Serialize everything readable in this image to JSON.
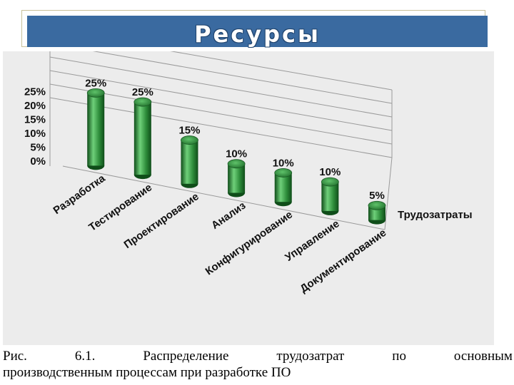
{
  "slide": {
    "title": "Ресурсы"
  },
  "caption": {
    "line1_words": [
      "Рис.",
      "6.1.",
      "Распределение",
      "трудозатрат",
      "по",
      "основным"
    ],
    "line2": "производственным процессам при разработке ПО"
  },
  "colors": {
    "title_bar": "#3a6aa0",
    "cylinder": "#2d8c3a",
    "cylinder_dark": "#0f4d19",
    "cylinder_light": "#6fd07a",
    "chart_background": "#ececec"
  },
  "chart_data": {
    "type": "bar",
    "style": "3d-cylinder",
    "categories": [
      "Разработка",
      "Тестирование",
      "Проектирование",
      "Анализ",
      "Конфигурирование",
      "Управление",
      "Документирование"
    ],
    "series": [
      {
        "name": "Трудозатраты",
        "values": [
          25,
          25,
          15,
          10,
          10,
          10,
          5
        ]
      }
    ],
    "data_labels": [
      "25%",
      "25%",
      "15%",
      "10%",
      "10%",
      "10%",
      "5%"
    ],
    "y_ticks": [
      "0%",
      "5%",
      "10%",
      "15%",
      "20%",
      "25%"
    ],
    "ylim": [
      0,
      25
    ],
    "grid": true,
    "legend": "right"
  }
}
